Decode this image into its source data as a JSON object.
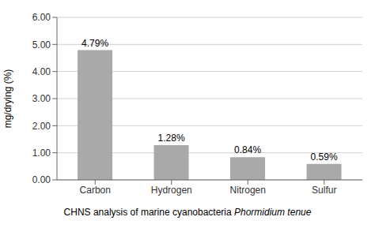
{
  "chart_data": {
    "type": "bar",
    "categories": [
      "Carbon",
      "Hydrogen",
      "Nitrogen",
      "Sulfur"
    ],
    "values": [
      4.79,
      1.28,
      0.84,
      0.59
    ],
    "value_labels": [
      "4.79%",
      "1.28%",
      "0.84%",
      "0.59%"
    ],
    "data_labels": true,
    "color": "#a9a9a9",
    "y_label": "mg/drying (%)",
    "ylim": [
      0,
      6.0
    ],
    "yticks": [
      {
        "value": 0,
        "label": "0.00"
      },
      {
        "value": 1,
        "label": "1.00"
      },
      {
        "value": 2,
        "label": "2.00"
      },
      {
        "value": 3,
        "label": "3.00"
      },
      {
        "value": 4,
        "label": "4.00"
      },
      {
        "value": 5,
        "label": "5.00"
      },
      {
        "value": 6,
        "label": "6.00"
      }
    ],
    "grid": true,
    "annotations": [
      "CHNS analysis of marine cyanobacteria",
      "Phormidium tenue"
    ]
  }
}
